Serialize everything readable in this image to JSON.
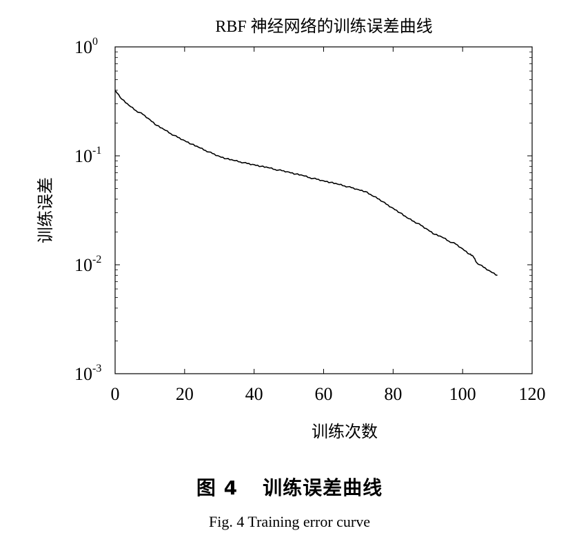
{
  "chart_data": {
    "type": "line",
    "title": "RBF 神经网络的训练误差曲线",
    "xlabel": "训练次数",
    "ylabel": "训练误差",
    "xlim": [
      0,
      120
    ],
    "ylim": [
      0.001,
      1
    ],
    "yscale": "log",
    "grid": false,
    "x_ticks": [
      0,
      20,
      40,
      60,
      80,
      100,
      120
    ],
    "y_ticks": [
      {
        "value": 1,
        "base": "10",
        "exp": "0"
      },
      {
        "value": 0.1,
        "base": "10",
        "exp": "-1"
      },
      {
        "value": 0.01,
        "base": "10",
        "exp": "-2"
      },
      {
        "value": 0.001,
        "base": "10",
        "exp": "-3"
      }
    ],
    "series": [
      {
        "color": "#000000",
        "x": [
          0,
          2,
          4,
          6,
          8,
          10,
          12,
          14,
          16,
          18,
          20,
          22,
          24,
          26,
          28,
          30,
          32,
          34,
          36,
          38,
          40,
          42,
          44,
          46,
          48,
          50,
          52,
          54,
          56,
          58,
          60,
          62,
          64,
          66,
          68,
          70,
          72,
          74,
          76,
          78,
          80,
          82,
          84,
          86,
          88,
          90,
          92,
          94,
          96,
          98,
          100,
          102,
          103,
          104,
          106,
          108,
          110
        ],
        "y": [
          0.4,
          0.33,
          0.29,
          0.26,
          0.24,
          0.215,
          0.19,
          0.175,
          0.16,
          0.148,
          0.138,
          0.128,
          0.12,
          0.112,
          0.105,
          0.099,
          0.094,
          0.091,
          0.088,
          0.085,
          0.083,
          0.08,
          0.078,
          0.075,
          0.073,
          0.071,
          0.068,
          0.066,
          0.063,
          0.061,
          0.059,
          0.057,
          0.055,
          0.053,
          0.051,
          0.049,
          0.047,
          0.043,
          0.04,
          0.036,
          0.033,
          0.03,
          0.027,
          0.025,
          0.023,
          0.021,
          0.019,
          0.018,
          0.0165,
          0.0155,
          0.014,
          0.0125,
          0.012,
          0.0105,
          0.0095,
          0.0087,
          0.008
        ]
      }
    ]
  },
  "caption": {
    "figure_no": "图 4",
    "title_cn": "训练误差曲线",
    "title_en": "Fig. 4 Training error curve"
  }
}
